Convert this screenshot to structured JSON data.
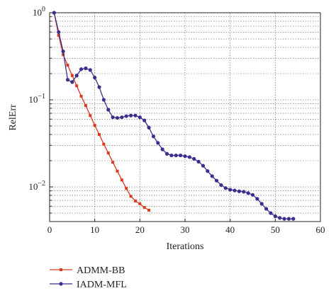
{
  "chart_data": {
    "type": "line",
    "xlabel": "Iterations",
    "ylabel": "RelErr",
    "xlim": [
      0,
      60
    ],
    "ylim": [
      0.004,
      1
    ],
    "yscale": "log",
    "grid": true,
    "legend_position": "bottom-left, below plot",
    "x_ticks": [
      0,
      10,
      20,
      30,
      40,
      50,
      60
    ],
    "x_tick_labels": [
      "0",
      "10",
      "20",
      "30",
      "40",
      "50",
      "60"
    ],
    "y_major_ticks": [
      {
        "value": 1,
        "base": "10",
        "exp": "0"
      },
      {
        "value": 0.1,
        "base": "10",
        "exp": "−1"
      },
      {
        "value": 0.01,
        "base": "10",
        "exp": "−2"
      }
    ],
    "series": [
      {
        "name": "ADMM-BB",
        "color": "#d93a20",
        "marker": "square",
        "x": [
          1,
          2,
          3,
          4,
          5,
          6,
          7,
          8,
          9,
          10,
          11,
          12,
          13,
          14,
          15,
          16,
          17,
          18,
          19,
          20,
          21,
          22
        ],
        "y": [
          1.0,
          0.55,
          0.33,
          0.25,
          0.19,
          0.145,
          0.11,
          0.086,
          0.066,
          0.051,
          0.04,
          0.031,
          0.0245,
          0.0192,
          0.0152,
          0.012,
          0.0096,
          0.0078,
          0.0069,
          0.0064,
          0.0058,
          0.0054
        ]
      },
      {
        "name": "IADM-MFL",
        "color": "#3a2f8f",
        "marker": "circle",
        "x": [
          1,
          2,
          3,
          4,
          5,
          6,
          7,
          8,
          9,
          10,
          11,
          12,
          13,
          14,
          15,
          16,
          17,
          18,
          19,
          20,
          21,
          22,
          23,
          24,
          25,
          26,
          27,
          28,
          29,
          30,
          31,
          32,
          33,
          34,
          35,
          36,
          37,
          38,
          39,
          40,
          41,
          42,
          43,
          44,
          45,
          46,
          47,
          48,
          49,
          50,
          51,
          52,
          53,
          54
        ],
        "y": [
          1.0,
          0.6,
          0.36,
          0.17,
          0.16,
          0.19,
          0.225,
          0.23,
          0.22,
          0.18,
          0.14,
          0.1,
          0.077,
          0.063,
          0.062,
          0.063,
          0.065,
          0.066,
          0.066,
          0.063,
          0.058,
          0.048,
          0.038,
          0.032,
          0.027,
          0.024,
          0.023,
          0.023,
          0.023,
          0.0225,
          0.022,
          0.021,
          0.0195,
          0.0175,
          0.0152,
          0.0133,
          0.0118,
          0.0105,
          0.0097,
          0.0093,
          0.0091,
          0.0089,
          0.0088,
          0.0085,
          0.0081,
          0.0073,
          0.0064,
          0.0056,
          0.005,
          0.0046,
          0.0044,
          0.0043,
          0.0043,
          0.0043
        ]
      }
    ]
  }
}
